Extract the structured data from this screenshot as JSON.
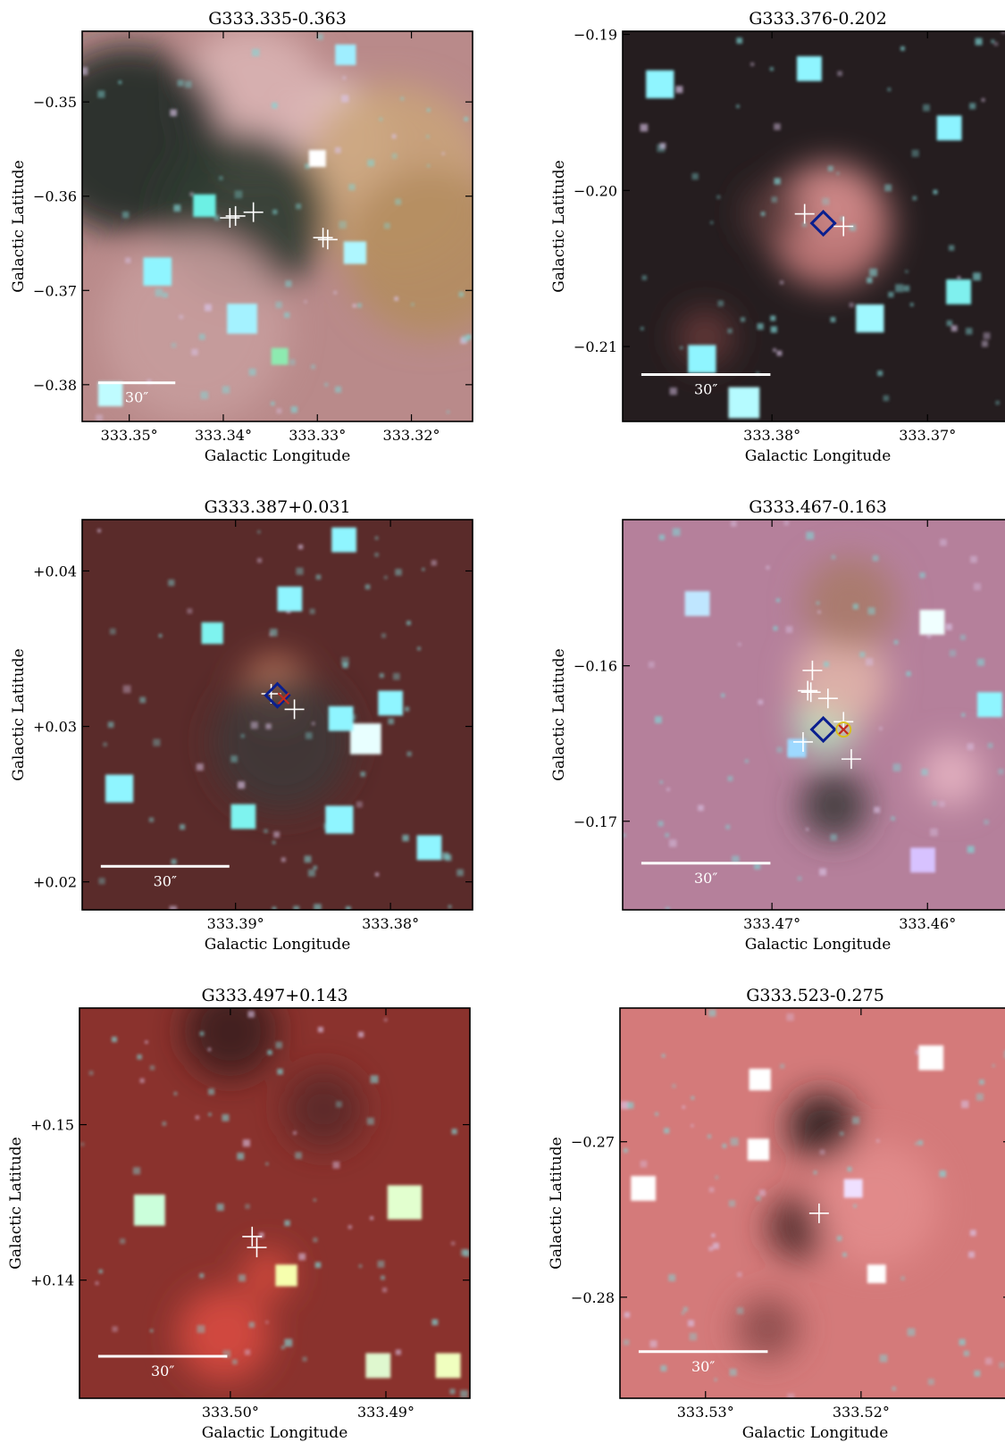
{
  "figure": {
    "xlabel": "Galactic Longitude",
    "ylabel": "Galactic Latitude",
    "scalebar_label": "30″",
    "panels": [
      {
        "title": "G333.335-0.363",
        "xticks": [
          {
            "v": 333.35,
            "label": "333.35°"
          },
          {
            "v": 333.34,
            "label": "333.34°"
          },
          {
            "v": 333.33,
            "label": "333.33°"
          },
          {
            "v": 333.32,
            "label": "333.32°"
          }
        ],
        "yticks": [
          {
            "v": -0.35,
            "label": "−0.35"
          },
          {
            "v": -0.36,
            "label": "−0.36"
          },
          {
            "v": -0.37,
            "label": "−0.37"
          },
          {
            "v": -0.38,
            "label": "−0.38"
          }
        ],
        "xlim": [
          333.355,
          333.3135
        ],
        "ylim": [
          -0.3839,
          -0.3425
        ],
        "scalebar": [
          333.3533,
          333.3451,
          -0.3798
        ],
        "background": "#b98a8a",
        "glows": [
          {
            "x": 333.328,
            "y": -0.354,
            "r": 0.006,
            "c": "#f4dede"
          },
          {
            "x": 333.322,
            "y": -0.358,
            "r": 0.01,
            "c": "#c9a37a"
          },
          {
            "x": 333.318,
            "y": -0.366,
            "r": 0.009,
            "c": "#b48d61"
          },
          {
            "x": 333.337,
            "y": -0.35,
            "r": 0.008,
            "c": "#d9b2b2"
          },
          {
            "x": 333.35,
            "y": -0.354,
            "r": 0.01,
            "c": "#1e2a24"
          },
          {
            "x": 333.338,
            "y": -0.362,
            "r": 0.009,
            "c": "#2e3a30"
          },
          {
            "x": 333.343,
            "y": -0.374,
            "r": 0.01,
            "c": "#c69c9c"
          }
        ],
        "stars": [
          {
            "x": 333.342,
            "y": -0.361,
            "c": "#6cf0e4",
            "r": 0.0012
          },
          {
            "x": 333.347,
            "y": -0.368,
            "c": "#8ff5ff",
            "r": 0.0015
          },
          {
            "x": 333.338,
            "y": -0.373,
            "c": "#a4f2ff",
            "r": 0.0016
          },
          {
            "x": 333.327,
            "y": -0.345,
            "c": "#9feeff",
            "r": 0.0011
          },
          {
            "x": 333.326,
            "y": -0.366,
            "c": "#aef7ff",
            "r": 0.0012
          },
          {
            "x": 333.352,
            "y": -0.381,
            "c": "#bffcff",
            "r": 0.0013
          },
          {
            "x": 333.33,
            "y": -0.356,
            "c": "#ffffff",
            "r": 0.0009
          },
          {
            "x": 333.334,
            "y": -0.377,
            "c": "#8deab0",
            "r": 0.0009
          }
        ],
        "markers": [
          {
            "type": "plus",
            "x": 333.3393,
            "y": -0.3623
          },
          {
            "type": "plus",
            "x": 333.3387,
            "y": -0.3621
          },
          {
            "type": "plus",
            "x": 333.3368,
            "y": -0.3617
          },
          {
            "type": "plus",
            "x": 333.3294,
            "y": -0.3644
          },
          {
            "type": "plus",
            "x": 333.3289,
            "y": -0.3646
          }
        ]
      },
      {
        "title": "G333.376-0.202",
        "xticks": [
          {
            "v": 333.38,
            "label": "333.38°"
          },
          {
            "v": 333.37,
            "label": "333.37°"
          }
        ],
        "yticks": [
          {
            "v": -0.19,
            "label": "−0.19"
          },
          {
            "v": -0.2,
            "label": "−0.20"
          },
          {
            "v": -0.21,
            "label": "−0.21"
          }
        ],
        "xlim": [
          333.3896,
          333.3645
        ],
        "ylim": [
          -0.2148,
          -0.1898
        ],
        "scalebar": [
          333.3884,
          333.3801,
          -0.2118
        ],
        "background": "#251d1f",
        "glows": [
          {
            "x": 333.3761,
            "y": -0.2008,
            "r": 0.0024,
            "c": "#f7e6e6"
          },
          {
            "x": 333.3763,
            "y": -0.2022,
            "r": 0.004,
            "c": "#c97d7d"
          },
          {
            "x": 333.3799,
            "y": -0.2015,
            "r": 0.002,
            "c": "#5a3a3a"
          },
          {
            "x": 333.3843,
            "y": -0.2094,
            "r": 0.0018,
            "c": "#6b3a3a"
          }
        ],
        "stars": [
          {
            "x": 333.3872,
            "y": -0.1932,
            "c": "#8ff5ff",
            "r": 0.0009
          },
          {
            "x": 333.3776,
            "y": -0.1922,
            "c": "#8ff5ff",
            "r": 0.0008
          },
          {
            "x": 333.3845,
            "y": -0.2108,
            "c": "#8ff5ff",
            "r": 0.0009
          },
          {
            "x": 333.3737,
            "y": -0.2082,
            "c": "#9ff8ff",
            "r": 0.0009
          },
          {
            "x": 333.3818,
            "y": -0.2136,
            "c": "#b5fbff",
            "r": 0.001
          },
          {
            "x": 333.368,
            "y": -0.2065,
            "c": "#7ff0ee",
            "r": 0.0008
          },
          {
            "x": 333.3686,
            "y": -0.196,
            "c": "#8cf3ff",
            "r": 0.0008
          }
        ],
        "markers": [
          {
            "type": "plus",
            "x": 333.3779,
            "y": -0.2015
          },
          {
            "type": "diamond",
            "x": 333.3767,
            "y": -0.2021,
            "c": "#0a1f8f"
          },
          {
            "type": "plus",
            "x": 333.3754,
            "y": -0.2023
          }
        ]
      },
      {
        "title": "G333.387+0.031",
        "xticks": [
          {
            "v": 333.39,
            "label": "333.39°"
          },
          {
            "v": 333.38,
            "label": "333.38°"
          }
        ],
        "yticks": [
          {
            "v": 0.04,
            "label": "+0.04"
          },
          {
            "v": 0.03,
            "label": "+0.03"
          },
          {
            "v": 0.02,
            "label": "+0.02"
          }
        ],
        "xlim": [
          333.3999,
          333.3747
        ],
        "ylim": [
          0.0182,
          0.0433
        ],
        "scalebar": [
          333.3987,
          333.3904,
          0.021
        ],
        "background": "#5a2b2a",
        "glows": [
          {
            "x": 333.3874,
            "y": 0.0322,
            "r": 0.0022,
            "c": "#e6926e"
          },
          {
            "x": 333.387,
            "y": 0.029,
            "r": 0.0045,
            "c": "#3e3938"
          }
        ],
        "stars": [
          {
            "x": 333.3816,
            "y": 0.0292,
            "c": "#e8ffff",
            "r": 0.001
          },
          {
            "x": 333.3832,
            "y": 0.0305,
            "c": "#8ff5ff",
            "r": 0.0008
          },
          {
            "x": 333.38,
            "y": 0.0315,
            "c": "#8ff5ff",
            "r": 0.0008
          },
          {
            "x": 333.3895,
            "y": 0.0242,
            "c": "#7ef3ef",
            "r": 0.0008
          },
          {
            "x": 333.3833,
            "y": 0.024,
            "c": "#8ff5ff",
            "r": 0.0009
          },
          {
            "x": 333.3865,
            "y": 0.0382,
            "c": "#8ff5ff",
            "r": 0.0008
          },
          {
            "x": 333.383,
            "y": 0.042,
            "c": "#8ff5ff",
            "r": 0.0008
          },
          {
            "x": 333.3975,
            "y": 0.026,
            "c": "#8ff5ff",
            "r": 0.0009
          },
          {
            "x": 333.3915,
            "y": 0.036,
            "c": "#7ef3ef",
            "r": 0.0007
          },
          {
            "x": 333.3775,
            "y": 0.0222,
            "c": "#8ff5ff",
            "r": 0.0008
          }
        ],
        "markers": [
          {
            "type": "plus",
            "x": 333.3877,
            "y": 0.0321
          },
          {
            "type": "diamond",
            "x": 333.3873,
            "y": 0.032,
            "c": "#0a1f8f"
          },
          {
            "type": "plus",
            "x": 333.3862,
            "y": 0.0311
          },
          {
            "type": "xmark",
            "x": 333.3869,
            "y": 0.0318,
            "c": "#c22a1e"
          }
        ]
      },
      {
        "title": "G333.467-0.163",
        "xticks": [
          {
            "v": 333.47,
            "label": "333.47°"
          },
          {
            "v": 333.46,
            "label": "333.46°"
          }
        ],
        "yticks": [
          {
            "v": -0.16,
            "label": "−0.16"
          },
          {
            "v": -0.17,
            "label": "−0.17"
          }
        ],
        "xlim": [
          333.4796,
          333.4545
        ],
        "ylim": [
          -0.1757,
          -0.1506
        ],
        "scalebar": [
          333.4784,
          333.4701,
          -0.1727
        ],
        "background": "#b5809b",
        "glows": [
          {
            "x": 333.4665,
            "y": -0.1635,
            "r": 0.002,
            "c": "#a8f5c8"
          },
          {
            "x": 333.4656,
            "y": -0.161,
            "r": 0.003,
            "c": "#e0b2a8"
          },
          {
            "x": 333.466,
            "y": -0.169,
            "r": 0.0022,
            "c": "#3e3a3a"
          },
          {
            "x": 333.465,
            "y": -0.156,
            "r": 0.003,
            "c": "#a87a6a"
          },
          {
            "x": 333.4585,
            "y": -0.167,
            "r": 0.002,
            "c": "#e6b4c2"
          }
        ],
        "stars": [
          {
            "x": 333.456,
            "y": -0.1625,
            "c": "#8ff5ff",
            "r": 0.0008
          },
          {
            "x": 333.4597,
            "y": -0.1572,
            "c": "#f0ffff",
            "r": 0.0008
          },
          {
            "x": 333.4748,
            "y": -0.156,
            "c": "#bfe6ff",
            "r": 0.0008
          },
          {
            "x": 333.4684,
            "y": -0.1653,
            "c": "#9ed9ff",
            "r": 0.0006
          },
          {
            "x": 333.4603,
            "y": -0.1725,
            "c": "#d7c2ff",
            "r": 0.0008
          }
        ],
        "markers": [
          {
            "type": "plus",
            "x": 333.4674,
            "y": -0.1603
          },
          {
            "type": "plus",
            "x": 333.4677,
            "y": -0.1616
          },
          {
            "type": "plus",
            "x": 333.4675,
            "y": -0.1617
          },
          {
            "type": "plus",
            "x": 333.4664,
            "y": -0.1621
          },
          {
            "type": "plus",
            "x": 333.4654,
            "y": -0.1636
          },
          {
            "type": "diamond",
            "x": 333.4667,
            "y": -0.1641,
            "c": "#0a1f8f"
          },
          {
            "type": "xmark",
            "x": 333.4654,
            "y": -0.1641,
            "c": "#c22a1e"
          },
          {
            "type": "ring",
            "x": 333.4654,
            "y": -0.1641,
            "c": "#d8c01a"
          },
          {
            "type": "plus",
            "x": 333.468,
            "y": -0.1649
          },
          {
            "type": "plus",
            "x": 333.4649,
            "y": -0.166
          }
        ]
      },
      {
        "title": "G333.497+0.143",
        "xticks": [
          {
            "v": 333.5,
            "label": "333.50°"
          },
          {
            "v": 333.49,
            "label": "333.49°"
          }
        ],
        "yticks": [
          {
            "v": 0.15,
            "label": "+0.15"
          },
          {
            "v": 0.14,
            "label": "+0.14"
          }
        ],
        "xlim": [
          333.5097,
          333.4846
        ],
        "ylim": [
          0.1324,
          0.1575
        ],
        "scalebar": [
          333.5085,
          333.5002,
          0.1351
        ],
        "background": "#8a322d",
        "glows": [
          {
            "x": 333.5004,
            "y": 0.1365,
            "r": 0.003,
            "c": "#d84a40"
          },
          {
            "x": 333.4976,
            "y": 0.1404,
            "r": 0.0016,
            "c": "#d64a3e"
          },
          {
            "x": 333.5,
            "y": 0.156,
            "r": 0.003,
            "c": "#3b2020"
          },
          {
            "x": 333.494,
            "y": 0.151,
            "r": 0.0025,
            "c": "#5a2828"
          }
        ],
        "stars": [
          {
            "x": 333.5052,
            "y": 0.1445,
            "c": "#cbffdb",
            "r": 0.001
          },
          {
            "x": 333.4888,
            "y": 0.145,
            "c": "#e2ffcf",
            "r": 0.0011
          },
          {
            "x": 333.4964,
            "y": 0.1403,
            "c": "#f6ffae",
            "r": 0.0007
          },
          {
            "x": 333.4905,
            "y": 0.1345,
            "c": "#dff8cf",
            "r": 0.0008
          },
          {
            "x": 333.486,
            "y": 0.1345,
            "c": "#f0ffbf",
            "r": 0.0008
          }
        ],
        "markers": [
          {
            "type": "plus",
            "x": 333.4986,
            "y": 0.1428
          },
          {
            "type": "plus",
            "x": 333.4983,
            "y": 0.1421
          }
        ]
      },
      {
        "title": "G333.523-0.275",
        "xticks": [
          {
            "v": 333.53,
            "label": "333.53°"
          },
          {
            "v": 333.52,
            "label": "333.52°"
          }
        ],
        "yticks": [
          {
            "v": -0.27,
            "label": "−0.27"
          },
          {
            "v": -0.28,
            "label": "−0.28"
          }
        ],
        "xlim": [
          333.5355,
          333.5104
        ],
        "ylim": [
          -0.2865,
          -0.2614
        ],
        "scalebar": [
          333.5343,
          333.526,
          -0.2835
        ],
        "background": "#d47a7a",
        "glows": [
          {
            "x": 333.5225,
            "y": -0.269,
            "r": 0.0022,
            "c": "#2a1c1c"
          },
          {
            "x": 333.524,
            "y": -0.2755,
            "r": 0.002,
            "c": "#4a2828"
          },
          {
            "x": 333.526,
            "y": -0.282,
            "r": 0.002,
            "c": "#8a4a4a"
          },
          {
            "x": 333.519,
            "y": -0.274,
            "r": 0.004,
            "c": "#e28c8c"
          }
        ],
        "stars": [
          {
            "x": 333.5265,
            "y": -0.266,
            "c": "#ffffff",
            "r": 0.0007
          },
          {
            "x": 333.534,
            "y": -0.273,
            "c": "#ffffff",
            "r": 0.0008
          },
          {
            "x": 333.5155,
            "y": -0.2646,
            "c": "#ffffff",
            "r": 0.0008
          },
          {
            "x": 333.519,
            "y": -0.2785,
            "c": "#ffffff",
            "r": 0.0006
          },
          {
            "x": 333.5205,
            "y": -0.273,
            "c": "#efe0ff",
            "r": 0.0006
          },
          {
            "x": 333.5266,
            "y": -0.2705,
            "c": "#ffffff",
            "r": 0.0007
          }
        ],
        "markers": [
          {
            "type": "plus",
            "x": 333.5227,
            "y": -0.2746
          }
        ]
      }
    ]
  }
}
